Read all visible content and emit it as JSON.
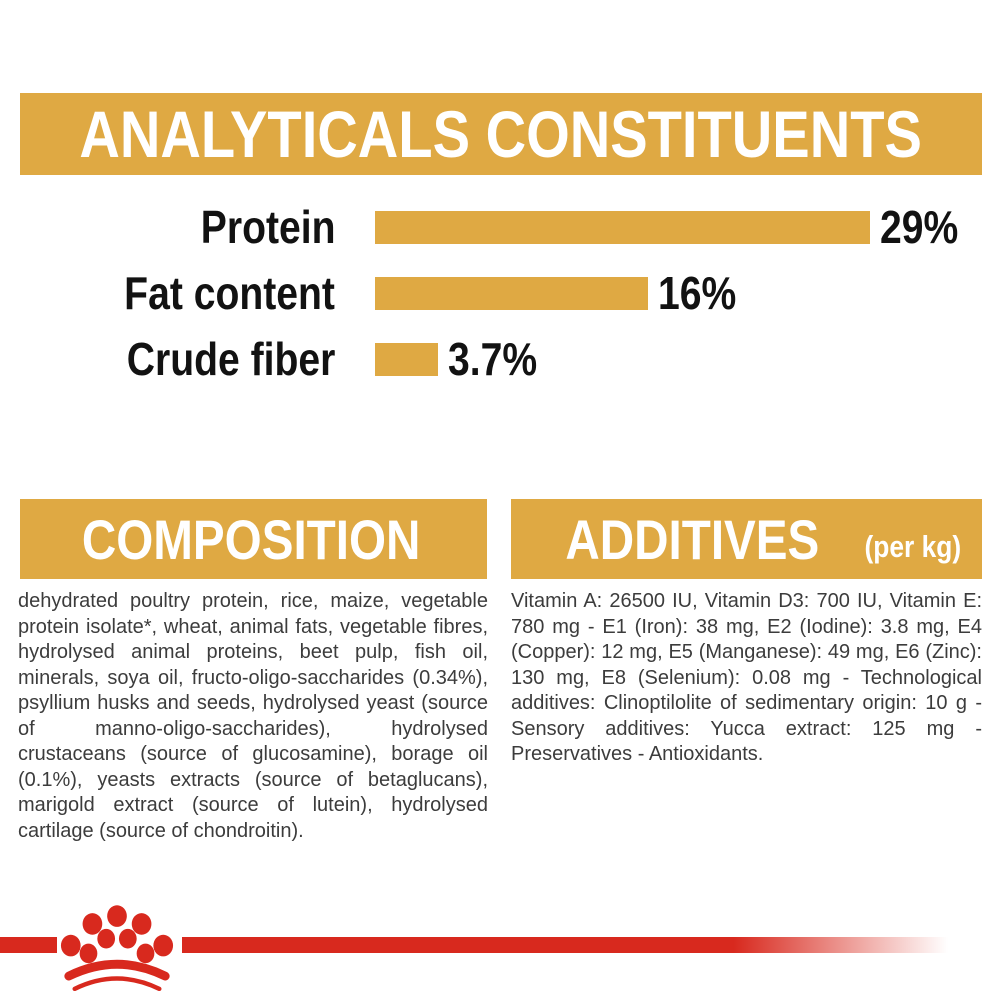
{
  "colors": {
    "gold": "#DFA943",
    "red": "#D8291E",
    "heading_text": "#FFFFFF",
    "chart_text": "#121212",
    "body_text": "#3C3C3C",
    "background": "#FFFFFF"
  },
  "header": {
    "title": "ANALYTICALS CONSTITUENTS"
  },
  "chart_data": {
    "type": "bar",
    "orientation": "horizontal",
    "categories": [
      "Protein",
      "Fat content",
      "Crude fiber"
    ],
    "values": [
      29,
      16,
      3.7
    ],
    "value_labels": [
      "29%",
      "16%",
      "3.7%"
    ],
    "unit": "%",
    "xlim": [
      0,
      29
    ],
    "grid": false,
    "legend": "none",
    "title": "ANALYTICALS CONSTITUENTS",
    "bar_color": "#DFA943"
  },
  "sections": {
    "composition": {
      "title": "COMPOSITION",
      "body": "dehydrated poultry protein, rice, maize, vegetable protein isolate*, wheat, animal fats, vegetable fibres, hydrolysed animal proteins, beet pulp, fish oil, minerals, soya oil, fructo-oligo-saccharides (0.34%), psyllium husks and seeds, hydrolysed yeast (source of manno-oligo-saccharides), hydrolysed crustaceans (source of glucosamine), borage oil (0.1%), yeasts extracts (source of betaglucans), marigold extract (source of lutein), hydrolysed cartilage (source of chondroitin)."
    },
    "additives": {
      "title": "ADDITIVES",
      "title_suffix": "(per kg)",
      "body": "Vitamin A: 26500 IU, Vitamin D3: 700 IU, Vitamin E: 780 mg - E1 (Iron): 38 mg, E2 (Iodine): 3.8 mg, E4 (Copper): 12 mg, E5 (Manganese): 49 mg, E6 (Zinc): 130 mg, E8 (Selenium): 0.08 mg - Technological additives: Clinoptilolite of sedimentary origin: 10 g - Sensory additives: Yucca extract: 125 mg - Preservatives - Antioxidants."
    }
  },
  "footer": {
    "logo": "royal-canin-crown-paw-logo"
  }
}
